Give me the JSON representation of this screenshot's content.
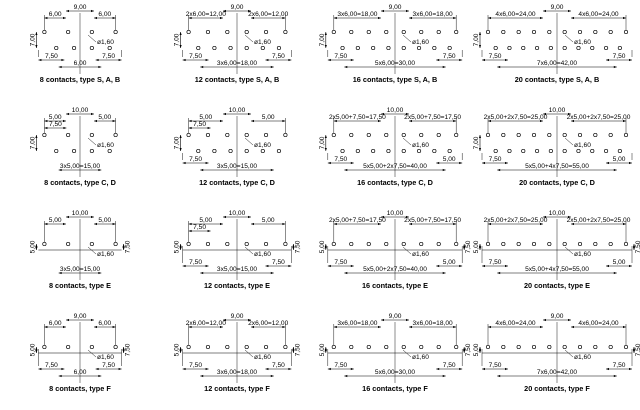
{
  "figure": {
    "rows": [
      {
        "row_type": "S, A, B",
        "panels": [
          {
            "caption": "8 contacts, type S, A, B",
            "contacts": 8,
            "top_count": 4,
            "bottom_count": 4,
            "pitch_mm": 6.0,
            "labels": {
              "top_left": "6,00",
              "top_center": "9,00",
              "top_right": "6,00",
              "left_vertical": "7,00",
              "hole": "ø1,60",
              "bottom_left": "7,50",
              "bottom_right": "7,50",
              "bottom_total": "6,00"
            }
          },
          {
            "caption": "12 contacts, type S, A, B",
            "contacts": 12,
            "top_count": 6,
            "bottom_count": 6,
            "pitch_mm": 6.0,
            "labels": {
              "top_left": "2x6,00=12,00",
              "top_center": "9,00",
              "top_right": "2x6,00=12,00",
              "left_vertical": "7,00",
              "hole": "ø1,60",
              "bottom_left": "7,50",
              "bottom_right": "7,50",
              "bottom_total": "3x6,00=18,00"
            }
          },
          {
            "caption": "16 contacts, type S, A, B",
            "contacts": 16,
            "top_count": 8,
            "bottom_count": 8,
            "pitch_mm": 6.0,
            "labels": {
              "top_left": "3x6,00=18,00",
              "top_center": "9,00",
              "top_right": "3x6,00=18,00",
              "left_vertical": "7,00",
              "hole": "ø1,60",
              "bottom_left": "7,50",
              "bottom_right": "7,50",
              "bottom_total": "5x6,00=30,00"
            }
          },
          {
            "caption": "20 contacts, type S, A, B",
            "contacts": 20,
            "top_count": 10,
            "bottom_count": 10,
            "pitch_mm": 6.0,
            "labels": {
              "top_left": "4x6,00=24,00",
              "top_center": "9,00",
              "top_right": "4x6,00=24,00",
              "left_vertical": "7,00",
              "hole": "ø1,60",
              "bottom_left": "7,50",
              "bottom_right": "7,50",
              "bottom_total": "7x6,00=42,00"
            }
          }
        ]
      },
      {
        "row_type": "C, D",
        "panels": [
          {
            "caption": "8 contacts, type C, D",
            "contacts": 8,
            "top_count": 4,
            "bottom_count": 4,
            "pitch_mm": 5.0,
            "labels": {
              "top_left": "5,00",
              "top_center": "10,00",
              "top_right": "5,00",
              "top_sub_left": "7,50",
              "left_vertical": "7,00",
              "hole": "ø1,60",
              "bottom_left": "",
              "bottom_right": "",
              "bottom_total": "3x5,00=15,00"
            }
          },
          {
            "caption": "12 contacts, type C, D",
            "contacts": 12,
            "top_count": 6,
            "bottom_count": 6,
            "pitch_mm": 5.0,
            "labels": {
              "top_left": "5,00",
              "top_center": "10,00",
              "top_right": "5,00",
              "top_sub_left": "7,50",
              "left_vertical": "7,00",
              "hole": "ø1,60",
              "bottom_left": "7,50",
              "bottom_right": "",
              "bottom_total": "3x5,00=15,00"
            }
          },
          {
            "caption": "16 contacts, type C, D",
            "contacts": 16,
            "top_count": 8,
            "bottom_count": 8,
            "pitch_mm": 5.0,
            "labels": {
              "top_left": "2x5,00+7,50=17,50",
              "top_center": "10,00",
              "top_right": "2x5,00+7,50=17,50",
              "left_vertical": "7,00",
              "hole": "ø1,60",
              "bottom_left": "7,50",
              "bottom_right": "5,00",
              "bottom_total": "5x5,00+2x7,50=40,00"
            }
          },
          {
            "caption": "20 contacts, type C, D",
            "contacts": 20,
            "top_count": 10,
            "bottom_count": 10,
            "pitch_mm": 5.0,
            "labels": {
              "top_left": "2x5,00+2x7,50=25,00",
              "top_center": "10,00",
              "top_right": "2x5,00+2x7,50=25,00",
              "left_vertical": "7,00",
              "hole": "ø1,60",
              "bottom_left": "7,50",
              "bottom_right": "5,00",
              "bottom_total": "5x5,00+4x7,50=55,00"
            }
          }
        ]
      },
      {
        "row_type": "E",
        "panels": [
          {
            "caption": "8 contacts, type E",
            "contacts": 8,
            "top_count": 4,
            "bottom_count": 4,
            "pitch_mm": 5.0,
            "labels": {
              "top_left": "5,00",
              "top_center": "10,00",
              "top_right": "5,00",
              "left_vertical": "5,00",
              "right_vertical": "7,50",
              "hole": "ø1,60",
              "bottom_left": "",
              "bottom_right": "",
              "bottom_total": "3x5,00=15,00"
            }
          },
          {
            "caption": "12 contacts, type E",
            "contacts": 12,
            "top_count": 6,
            "bottom_count": 6,
            "pitch_mm": 5.0,
            "labels": {
              "top_left": "5,00",
              "top_center": "10,00",
              "top_right": "5,00",
              "top_sub_left": "7,50",
              "left_vertical": "5,00",
              "right_vertical": "7,50",
              "hole": "ø1,60",
              "bottom_left": "7,50",
              "bottom_right": "7,50",
              "bottom_total": "3x5,00=15,00"
            }
          },
          {
            "caption": "16 contacts, type E",
            "contacts": 16,
            "top_count": 8,
            "bottom_count": 8,
            "pitch_mm": 5.0,
            "labels": {
              "top_left": "2x5,00+7,50=17,50",
              "top_center": "10,00",
              "top_right": "2x5,00+7,50=17,50",
              "left_vertical": "5,00",
              "right_vertical": "7,50",
              "hole": "ø1,60",
              "bottom_left": "7,50",
              "bottom_right": "5,00",
              "bottom_total": "5x5,00+2x7,50=40,00"
            }
          },
          {
            "caption": "20 contacts, type E",
            "contacts": 20,
            "top_count": 10,
            "bottom_count": 10,
            "pitch_mm": 5.0,
            "labels": {
              "top_left": "2x5,00+2x7,50=25,00",
              "top_center": "10,00",
              "top_right": "2x5,00+2x7,50=25,00",
              "left_vertical": "5,00",
              "right_vertical": "7,50",
              "hole": "ø1,60",
              "bottom_left": "7,50",
              "bottom_right": "5,00",
              "bottom_total": "5x5,00+4x7,50=55,00"
            }
          }
        ]
      },
      {
        "row_type": "F",
        "panels": [
          {
            "caption": "8 contacts, type F",
            "contacts": 8,
            "top_count": 4,
            "bottom_count": 4,
            "pitch_mm": 6.0,
            "labels": {
              "top_left": "6,00",
              "top_center": "9,00",
              "top_right": "6,00",
              "left_vertical": "5,00",
              "right_vertical": "7,50",
              "hole": "ø1,60",
              "bottom_left": "7,50",
              "bottom_right": "7,50",
              "bottom_total": "6,00"
            }
          },
          {
            "caption": "12 contacts, type F",
            "contacts": 12,
            "top_count": 6,
            "bottom_count": 6,
            "pitch_mm": 6.0,
            "labels": {
              "top_left": "2x6,00=12,00",
              "top_center": "9,00",
              "top_right": "2x6,00=12,00",
              "left_vertical": "5,00",
              "right_vertical": "7,50",
              "hole": "ø1,60",
              "bottom_left": "7,50",
              "bottom_right": "7,50",
              "bottom_total": "3x6,00=18,00"
            }
          },
          {
            "caption": "16 contacts, type F",
            "contacts": 16,
            "top_count": 8,
            "bottom_count": 8,
            "pitch_mm": 6.0,
            "labels": {
              "top_left": "3x6,00=18,00",
              "top_center": "9,00",
              "top_right": "3x6,00=18,00",
              "left_vertical": "5,00",
              "right_vertical": "7,50",
              "hole": "ø1,60",
              "bottom_left": "7,50",
              "bottom_right": "7,50",
              "bottom_total": "5x6,00=30,00"
            }
          },
          {
            "caption": "20 contacts, type F",
            "contacts": 20,
            "top_count": 10,
            "bottom_count": 10,
            "pitch_mm": 6.0,
            "labels": {
              "top_left": "4x6,00=24,00",
              "top_center": "9,00",
              "top_right": "4x6,00=24,00",
              "left_vertical": "5,00",
              "right_vertical": "7,50",
              "hole": "ø1,60",
              "bottom_left": "7,50",
              "bottom_right": "7,50",
              "bottom_total": "7x6,00=42,00"
            }
          }
        ]
      }
    ]
  }
}
